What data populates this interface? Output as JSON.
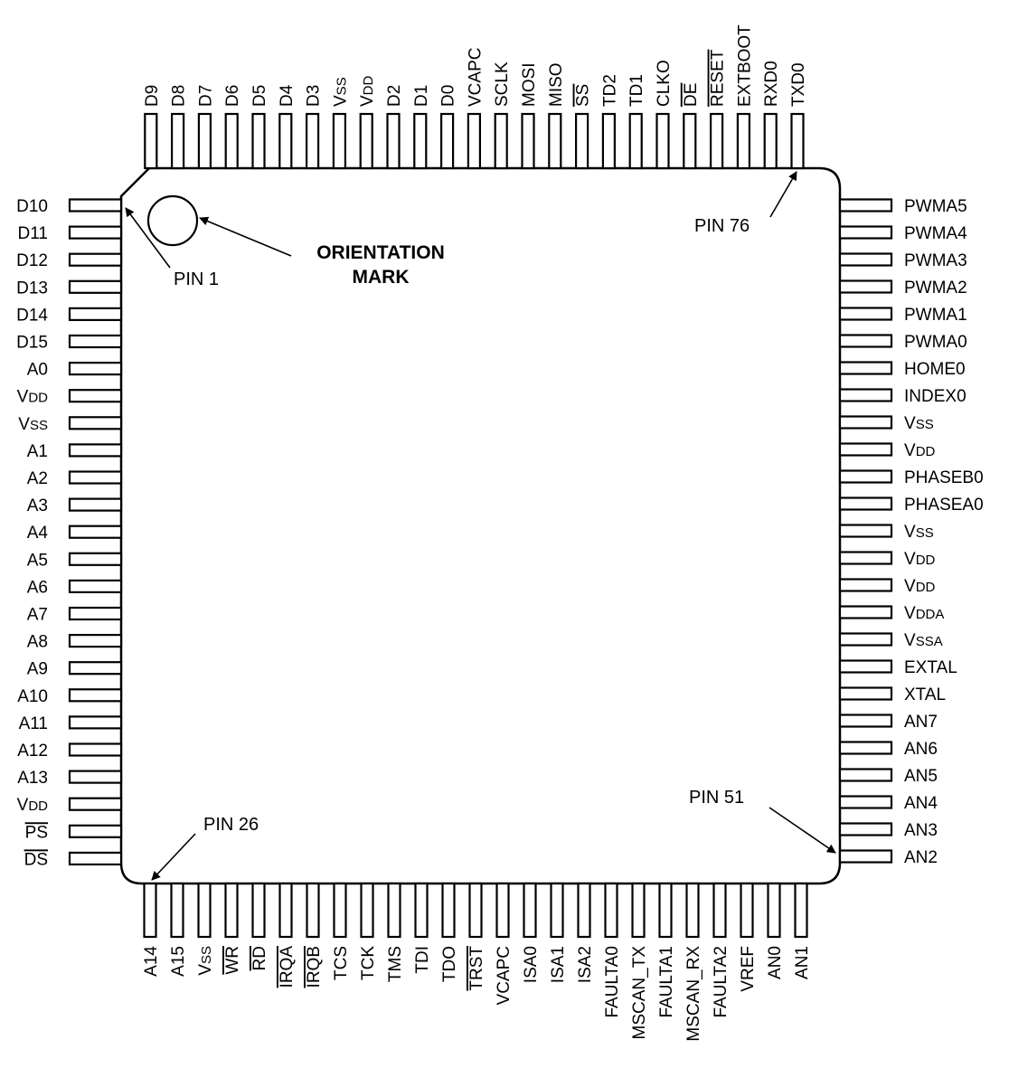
{
  "diagram": {
    "left_pins": [
      "D10",
      "D11",
      "D12",
      "D13",
      "D14",
      "D15",
      "A0",
      "VDD",
      "VSS",
      "A1",
      "A2",
      "A3",
      "A4",
      "A5",
      "A6",
      "A7",
      "A8",
      "A9",
      "A10",
      "A11",
      "A12",
      "A13",
      "VDD",
      "PS",
      "DS"
    ],
    "bottom_pins": [
      "A14",
      "A15",
      "VSS",
      "WR",
      "RD",
      "IRQA",
      "IRQB",
      "TCS",
      "TCK",
      "TMS",
      "TDI",
      "TDO",
      "TRST",
      "VCAPC",
      "ISA0",
      "ISA1",
      "ISA2",
      "FAULTA0",
      "MSCAN_TX",
      "FAULTA1",
      "MSCAN_RX",
      "FAULTA2",
      "VREF",
      "AN0",
      "AN1"
    ],
    "right_pins": [
      "AN2",
      "AN3",
      "AN4",
      "AN5",
      "AN6",
      "AN7",
      "XTAL",
      "EXTAL",
      "VSSA",
      "VDDA",
      "VDD",
      "VDD",
      "VSS",
      "PHASEA0",
      "PHASEB0",
      "VDD",
      "VSS",
      "INDEX0",
      "HOME0",
      "PWMA0",
      "PWMA1",
      "PWMA2",
      "PWMA3",
      "PWMA4",
      "PWMA5"
    ],
    "top_pins": [
      "TXD0",
      "RXD0",
      "EXTBOOT",
      "RESET",
      "DE",
      "CLKO",
      "TD1",
      "TD2",
      "SS",
      "MISO",
      "MOSI",
      "SCLK",
      "VCAPC",
      "D0",
      "D1",
      "D2",
      "VDD",
      "VSS",
      "D3",
      "D4",
      "D5",
      "D6",
      "D7",
      "D8",
      "D9"
    ],
    "overbar_pins": [
      "PS",
      "DS",
      "WR",
      "RD",
      "IRQA",
      "IRQB",
      "TRST",
      "RESET",
      "DE",
      "SS"
    ],
    "small_cap_pins": [
      "VDD",
      "VSS",
      "VDDA",
      "VSSA"
    ],
    "labels": {
      "pin1": "PIN 1",
      "pin26": "PIN 26",
      "pin51": "PIN 51",
      "pin76": "PIN 76",
      "orientation_line1": "ORIENTATION",
      "orientation_line2": "MARK"
    }
  }
}
